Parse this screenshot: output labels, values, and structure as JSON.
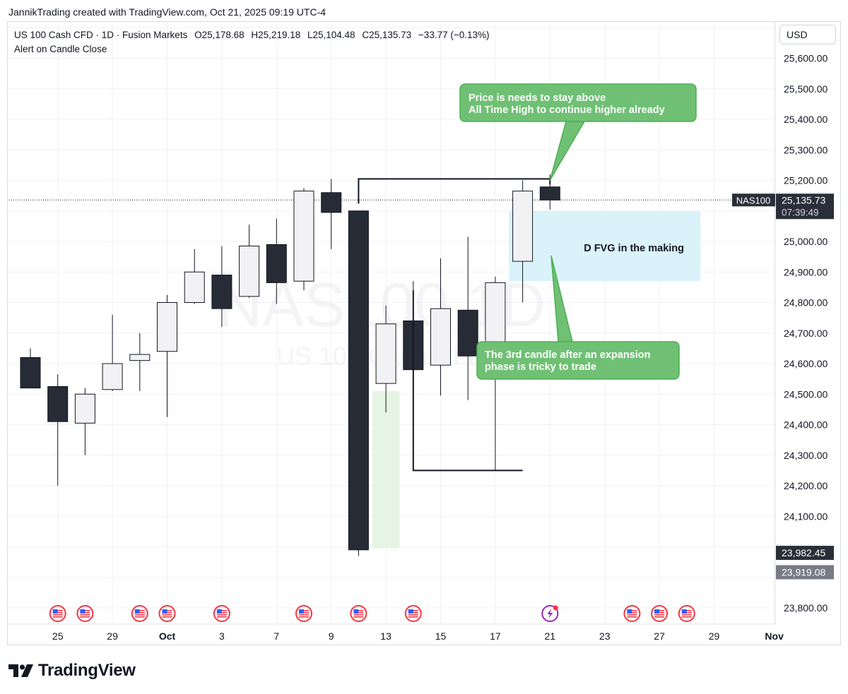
{
  "header": {
    "created_by": "JannikTrading created with TradingView.com, Oct 21, 2025 09:19 UTC-4"
  },
  "legend": {
    "symbol_line": "US 100 Cash CFD · 1D · Fusion Markets",
    "open": "O25,178.68",
    "high": "H25,219.18",
    "low": "L25,104.48",
    "close": "C25,135.73",
    "change": "−33.77 (−0.13%)",
    "alert": "Alert on Candle Close"
  },
  "currency_button": "USD",
  "watermark": {
    "symbol": "NAS100 1D",
    "sub": "US 100 Cash CFD"
  },
  "price_tags": {
    "symbol_tag": "NAS100",
    "last_price": "25,135.73",
    "countdown": "07:39:49",
    "tag_2": "23,982.45",
    "tag_3": "23,919.08"
  },
  "annotations": {
    "top_callout": [
      "Price is needs to stay above",
      "All Time High to continue higher already"
    ],
    "fvg_label": "D FVG in the making",
    "bottom_callout": [
      "The 3rd candle after an expansion",
      "phase is tricky to trade"
    ]
  },
  "footer_logo": "TradingView",
  "colors": {
    "bull_fill": "#f2f2f4",
    "bear_fill": "#262b36",
    "candle_border": "#131722",
    "callout_fill": "#6fc074",
    "callout_border": "#4caf50",
    "fvg_fill": "#daf3fa",
    "green_zone": "#e6f5e3",
    "grid": "#f0f1f4",
    "tag_dark": "#2a2e39",
    "tag_gray": "#787b86"
  },
  "chart_data": {
    "type": "candlestick",
    "y_axis_labels": [
      "25,600.00",
      "25,500.00",
      "25,400.00",
      "25,300.00",
      "25,200.00",
      "25,100.00",
      "25,000.00",
      "24,900.00",
      "24,800.00",
      "24,700.00",
      "24,600.00",
      "24,500.00",
      "24,400.00",
      "24,300.00",
      "24,200.00",
      "24,100.00",
      "23,800.00"
    ],
    "y_axis_values": [
      25600,
      25500,
      25400,
      25300,
      25200,
      25100,
      25000,
      24900,
      24800,
      24700,
      24600,
      24500,
      24400,
      24300,
      24200,
      24100,
      23800
    ],
    "ylim": [
      23760,
      25700
    ],
    "x_tick_labels": [
      "25",
      "29",
      "Oct",
      "3",
      "7",
      "9",
      "13",
      "15",
      "17",
      "21",
      "23",
      "27",
      "29",
      "Nov"
    ],
    "x_tick_slots": [
      1,
      3,
      5,
      7,
      9,
      11,
      13,
      15,
      17,
      19,
      21,
      23,
      25,
      27.2
    ],
    "event_marker_slots": [
      1,
      2,
      4,
      5,
      7,
      10,
      12,
      14,
      22,
      23,
      24
    ],
    "special_event_slot": 19,
    "candles": [
      {
        "slot": 0,
        "open": 24620,
        "high": 24650,
        "low": 24520,
        "close": 24520
      },
      {
        "slot": 1,
        "open": 24525,
        "high": 24565,
        "low": 24200,
        "close": 24410
      },
      {
        "slot": 2,
        "open": 24405,
        "high": 24520,
        "low": 24300,
        "close": 24500
      },
      {
        "slot": 3,
        "open": 24515,
        "high": 24760,
        "low": 24510,
        "close": 24600
      },
      {
        "slot": 4,
        "open": 24610,
        "high": 24700,
        "low": 24510,
        "close": 24630
      },
      {
        "slot": 5,
        "open": 24640,
        "high": 24825,
        "low": 24425,
        "close": 24800
      },
      {
        "slot": 6,
        "open": 24800,
        "high": 24975,
        "low": 24795,
        "close": 24900
      },
      {
        "slot": 7,
        "open": 24890,
        "high": 24985,
        "low": 24720,
        "close": 24780
      },
      {
        "slot": 8,
        "open": 24820,
        "high": 25055,
        "low": 24815,
        "close": 24985
      },
      {
        "slot": 9,
        "open": 24990,
        "high": 25075,
        "low": 24795,
        "close": 24865
      },
      {
        "slot": 10,
        "open": 24870,
        "high": 25175,
        "low": 24840,
        "close": 25165
      },
      {
        "slot": 11,
        "open": 25160,
        "high": 25205,
        "low": 24975,
        "close": 25095
      },
      {
        "slot": 12,
        "open": 25100,
        "high": 25100,
        "low": 23970,
        "close": 23990
      },
      {
        "slot": 13,
        "open": 24535,
        "high": 24790,
        "low": 24440,
        "close": 24730
      },
      {
        "slot": 14,
        "open": 24740,
        "high": 24870,
        "low": 24250,
        "close": 24580
      },
      {
        "slot": 15,
        "open": 24595,
        "high": 24945,
        "low": 24495,
        "close": 24780
      },
      {
        "slot": 16,
        "open": 24775,
        "high": 25015,
        "low": 24480,
        "close": 24625
      },
      {
        "slot": 17,
        "open": 24635,
        "high": 24885,
        "low": 24250,
        "close": 24865
      },
      {
        "slot": 18,
        "open": 24935,
        "high": 25200,
        "low": 24800,
        "close": 25165
      },
      {
        "slot": 19,
        "open": 25178.68,
        "high": 25219.18,
        "low": 25104.48,
        "close": 25135.73
      }
    ],
    "resistance_line": {
      "value": 25205,
      "from_slot": 12,
      "to_slot": 19
    },
    "support_line": {
      "value": 24250,
      "from_slot": 14,
      "to_slot": 18
    },
    "fvg_zone": {
      "top": 25100,
      "bottom": 24870,
      "from_slot": 17.5,
      "to_slot": 24.5
    },
    "green_zone": {
      "top": 24510,
      "bottom": 23995,
      "from_slot": 12.5,
      "to_slot": 13.5
    },
    "last_price": 25135.73,
    "tag_levels": [
      23982.45,
      23919.08
    ]
  }
}
